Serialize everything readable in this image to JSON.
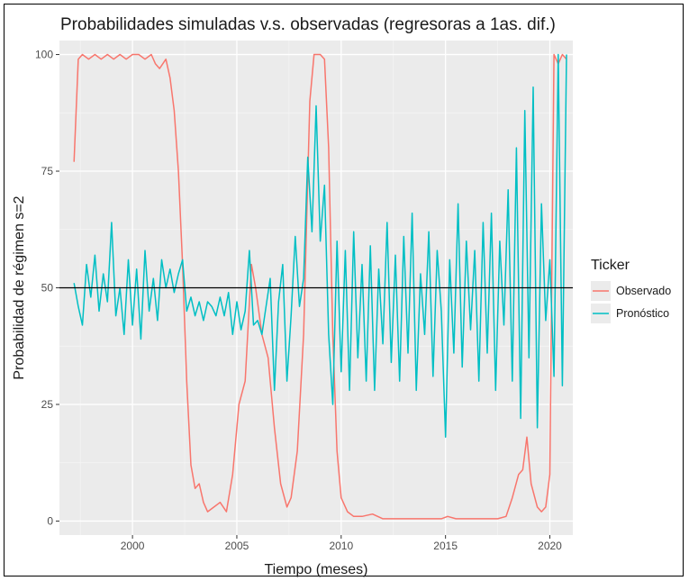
{
  "chart_data": {
    "type": "line",
    "title": "Probabilidades simuladas v.s. observadas (regresoras a 1as. dif.)",
    "xlabel": "Tiempo (meses)",
    "ylabel": "Probabilidad de régimen s=2",
    "xlim": [
      1996.5,
      2021.1
    ],
    "ylim": [
      -3,
      103
    ],
    "x_ticks": [
      2000,
      2005,
      2010,
      2015,
      2020
    ],
    "y_ticks": [
      0,
      25,
      50,
      75,
      100
    ],
    "hline": 50,
    "grid": true,
    "legend_title": "Ticker",
    "legend_position": "right",
    "series": [
      {
        "name": "Observado",
        "color": "#F8766D",
        "x": [
          1997.2,
          1997.4,
          1997.6,
          1997.9,
          1998.2,
          1998.5,
          1998.8,
          1999.1,
          1999.4,
          1999.7,
          2000.0,
          2000.3,
          2000.6,
          2000.9,
          2001.1,
          2001.3,
          2001.6,
          2001.8,
          2002.0,
          2002.2,
          2002.4,
          2002.6,
          2002.8,
          2003.0,
          2003.2,
          2003.4,
          2003.6,
          2003.9,
          2004.2,
          2004.5,
          2004.8,
          2005.1,
          2005.4,
          2005.7,
          2005.9,
          2006.2,
          2006.5,
          2006.8,
          2007.1,
          2007.4,
          2007.6,
          2007.9,
          2008.2,
          2008.5,
          2008.7,
          2009.0,
          2009.2,
          2009.4,
          2009.6,
          2009.8,
          2010.0,
          2010.3,
          2010.6,
          2011.0,
          2011.5,
          2012.0,
          2013.0,
          2014.0,
          2014.8,
          2015.1,
          2015.5,
          2016.5,
          2017.5,
          2017.9,
          2018.2,
          2018.5,
          2018.7,
          2018.9,
          2019.1,
          2019.4,
          2019.6,
          2019.8,
          2020.0,
          2020.2,
          2020.4,
          2020.6,
          2020.8
        ],
        "values": [
          77,
          99,
          100,
          99,
          100,
          99,
          100,
          99,
          100,
          99,
          100,
          100,
          99,
          100,
          98,
          97,
          99,
          95,
          88,
          75,
          55,
          30,
          12,
          7,
          8,
          4,
          2,
          3,
          4,
          2,
          10,
          25,
          30,
          55,
          50,
          40,
          35,
          20,
          8,
          3,
          5,
          15,
          40,
          90,
          100,
          100,
          99,
          80,
          40,
          15,
          5,
          2,
          1,
          1,
          1.5,
          0.5,
          0.5,
          0.5,
          0.5,
          1,
          0.5,
          0.5,
          0.5,
          1,
          5,
          10,
          11,
          18,
          8,
          3,
          2,
          3,
          10,
          100,
          98,
          100,
          99
        ]
      },
      {
        "name": "Pronóstico",
        "color": "#00BFC4",
        "x": [
          1997.2,
          1997.4,
          1997.6,
          1997.8,
          1998.0,
          1998.2,
          1998.4,
          1998.6,
          1998.8,
          1999.0,
          1999.2,
          1999.4,
          1999.6,
          1999.8,
          2000.0,
          2000.2,
          2000.4,
          2000.6,
          2000.8,
          2001.0,
          2001.2,
          2001.4,
          2001.6,
          2001.8,
          2002.0,
          2002.2,
          2002.4,
          2002.6,
          2002.8,
          2003.0,
          2003.2,
          2003.4,
          2003.6,
          2003.8,
          2004.0,
          2004.2,
          2004.4,
          2004.6,
          2004.8,
          2005.0,
          2005.2,
          2005.4,
          2005.6,
          2005.8,
          2006.0,
          2006.2,
          2006.4,
          2006.6,
          2006.8,
          2007.0,
          2007.2,
          2007.4,
          2007.6,
          2007.8,
          2008.0,
          2008.2,
          2008.4,
          2008.6,
          2008.8,
          2009.0,
          2009.2,
          2009.4,
          2009.6,
          2009.8,
          2010.0,
          2010.2,
          2010.4,
          2010.6,
          2010.8,
          2011.0,
          2011.2,
          2011.4,
          2011.6,
          2011.8,
          2012.0,
          2012.2,
          2012.4,
          2012.6,
          2012.8,
          2013.0,
          2013.2,
          2013.4,
          2013.6,
          2013.8,
          2014.0,
          2014.2,
          2014.4,
          2014.6,
          2014.8,
          2015.0,
          2015.2,
          2015.4,
          2015.6,
          2015.8,
          2016.0,
          2016.2,
          2016.4,
          2016.6,
          2016.8,
          2017.0,
          2017.2,
          2017.4,
          2017.6,
          2017.8,
          2018.0,
          2018.2,
          2018.4,
          2018.6,
          2018.8,
          2019.0,
          2019.2,
          2019.4,
          2019.6,
          2019.8,
          2020.0,
          2020.2,
          2020.4,
          2020.6,
          2020.8
        ],
        "values": [
          51,
          46,
          42,
          55,
          48,
          57,
          45,
          53,
          47,
          64,
          44,
          50,
          40,
          56,
          42,
          54,
          39,
          58,
          45,
          52,
          43,
          56,
          50,
          54,
          49,
          53,
          56,
          45,
          48,
          44,
          47,
          43,
          47,
          46,
          44,
          48,
          44,
          49,
          40,
          47,
          41,
          45,
          58,
          42,
          43,
          40,
          46,
          52,
          28,
          47,
          55,
          30,
          44,
          61,
          46,
          52,
          78,
          62,
          89,
          60,
          72,
          40,
          25,
          60,
          32,
          58,
          28,
          62,
          35,
          55,
          30,
          59,
          28,
          54,
          38,
          64,
          34,
          57,
          30,
          61,
          36,
          66,
          28,
          53,
          40,
          62,
          31,
          58,
          45,
          18,
          56,
          36,
          68,
          33,
          60,
          41,
          58,
          30,
          64,
          36,
          66,
          28,
          60,
          42,
          71,
          30,
          80,
          22,
          88,
          35,
          93,
          20,
          68,
          43,
          56,
          31,
          100,
          29,
          100
        ]
      }
    ]
  }
}
